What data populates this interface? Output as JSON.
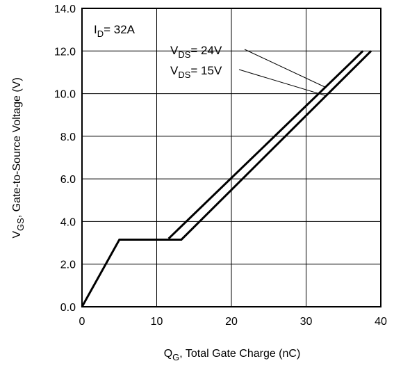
{
  "chart_data": {
    "type": "line",
    "xlabel": {
      "main": "Q",
      "sub": "G",
      "rest": ",  Total Gate Charge (nC)"
    },
    "ylabel": {
      "main": "V",
      "sub": "GS",
      "rest": ", Gate-to-Source Voltage (V)"
    },
    "xlim": [
      0,
      40
    ],
    "ylim": [
      0,
      14
    ],
    "x_ticks": [
      "0",
      "10",
      "20",
      "30",
      "40"
    ],
    "y_ticks": [
      "0.0",
      "2.0",
      "4.0",
      "6.0",
      "8.0",
      "10.0",
      "12.0",
      "14.0"
    ],
    "grid": true,
    "annotations": {
      "id": {
        "main": "I",
        "sub": "D",
        "rest": "= 32A"
      },
      "label_24": {
        "main": "V",
        "sub": "DS",
        "rest": "= 24V"
      },
      "label_15": {
        "main": "V",
        "sub": "DS",
        "rest": "= 15V"
      }
    },
    "series": [
      {
        "name": "VDS = 24V",
        "points": [
          [
            11.6,
            3.2
          ],
          [
            37.6,
            12.0
          ]
        ]
      },
      {
        "name": "VDS = 15V",
        "points": [
          [
            0,
            0
          ],
          [
            5.0,
            3.15
          ],
          [
            13.3,
            3.15
          ],
          [
            38.7,
            12.0
          ]
        ]
      }
    ],
    "line_color": "#000000"
  }
}
